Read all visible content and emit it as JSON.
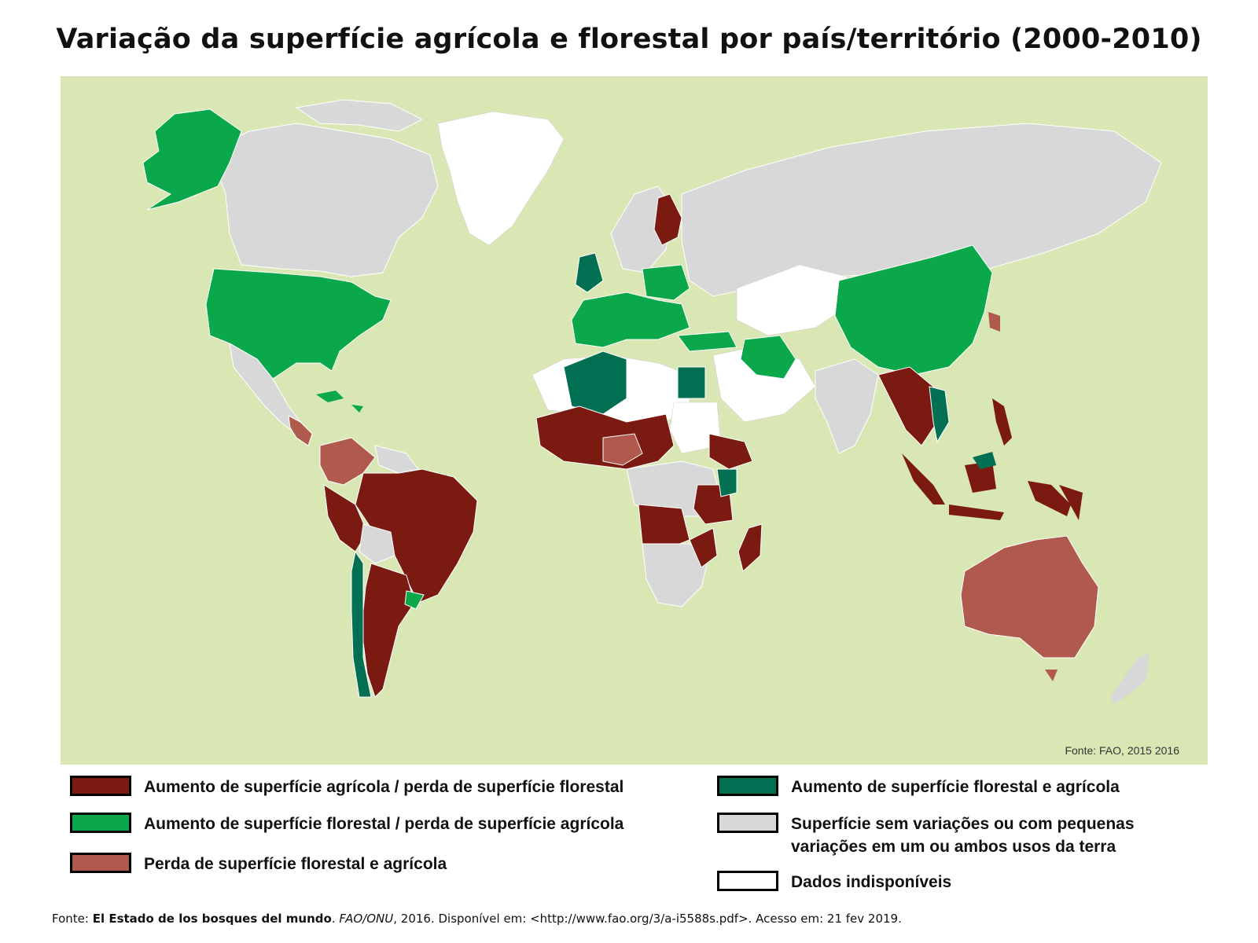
{
  "title": "Variação da superfície agrícola e florestal por país/território (2000-2010)",
  "map": {
    "source_note": "Fonte: FAO, 2015 2016",
    "colors": {
      "ocean": "#d9e7b5",
      "agri_gain_forest_loss": "#7a1a10",
      "forest_gain_agri_loss": "#0aa84a",
      "forest_agri_loss": "#b05a4e",
      "forest_agri_gain": "#006f52",
      "no_change": "#d8d8d8",
      "no_data": "#ffffff"
    }
  },
  "legend": {
    "agri_gain_forest_loss": "Aumento de superfície agrícola / perda de superfície florestal",
    "forest_gain_agri_loss": "Aumento de superfície florestal / perda de superfície agrícola",
    "forest_agri_loss": "Perda de superfície florestal e agrícola",
    "forest_agri_gain": "Aumento de superfície florestal e agrícola",
    "no_change_line1": "Superfície sem variações ou com pequenas",
    "no_change_line2": "variações em um ou ambos usos da terra",
    "no_data": "Dados indisponíveis"
  },
  "footer": {
    "prefix": "Fonte: ",
    "work": "El Estado de los bosques del mundo",
    "sep1": ". ",
    "publisher": "FAO/ONU",
    "rest": ", 2016. Disponível em: <http://www.fao.org/3/a-i5588s.pdf>. Acesso em: 21 fev 2019."
  }
}
